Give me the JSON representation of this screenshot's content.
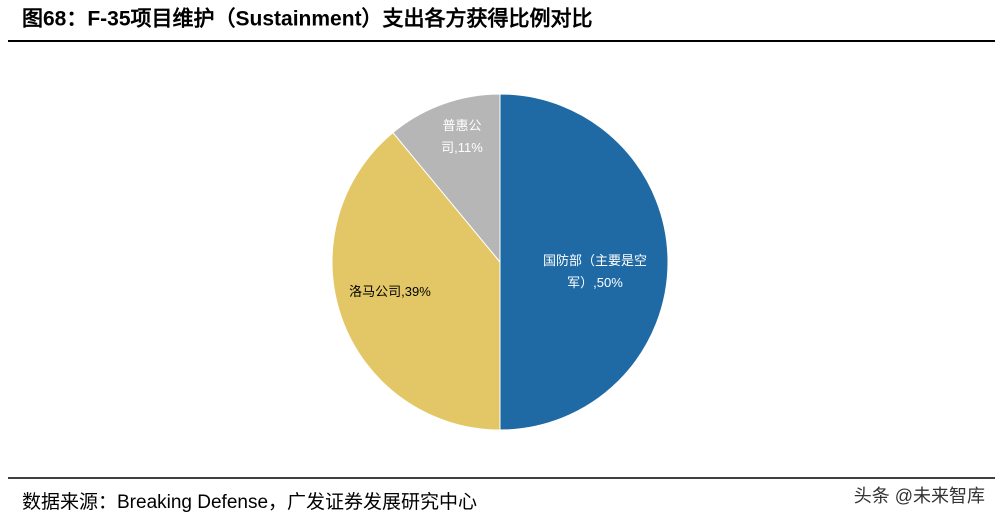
{
  "header": {
    "title": "图68：F-35项目维护（Sustainment）支出各方获得比例对比"
  },
  "chart_data": {
    "type": "pie",
    "values": [
      50,
      39,
      11
    ],
    "value_labels": [
      "国防部（主要是空军）,50%",
      "洛马公司,39%",
      "普惠公司,11%"
    ],
    "colors": [
      "#1f6aa5",
      "#e3c766",
      "#b6b6b6"
    ],
    "start_angle": 0,
    "direction": "clockwise"
  },
  "footer": {
    "source": "数据来源：Breaking Defense，广发证券发展研究中心",
    "watermark": "头条 @未来智库"
  }
}
